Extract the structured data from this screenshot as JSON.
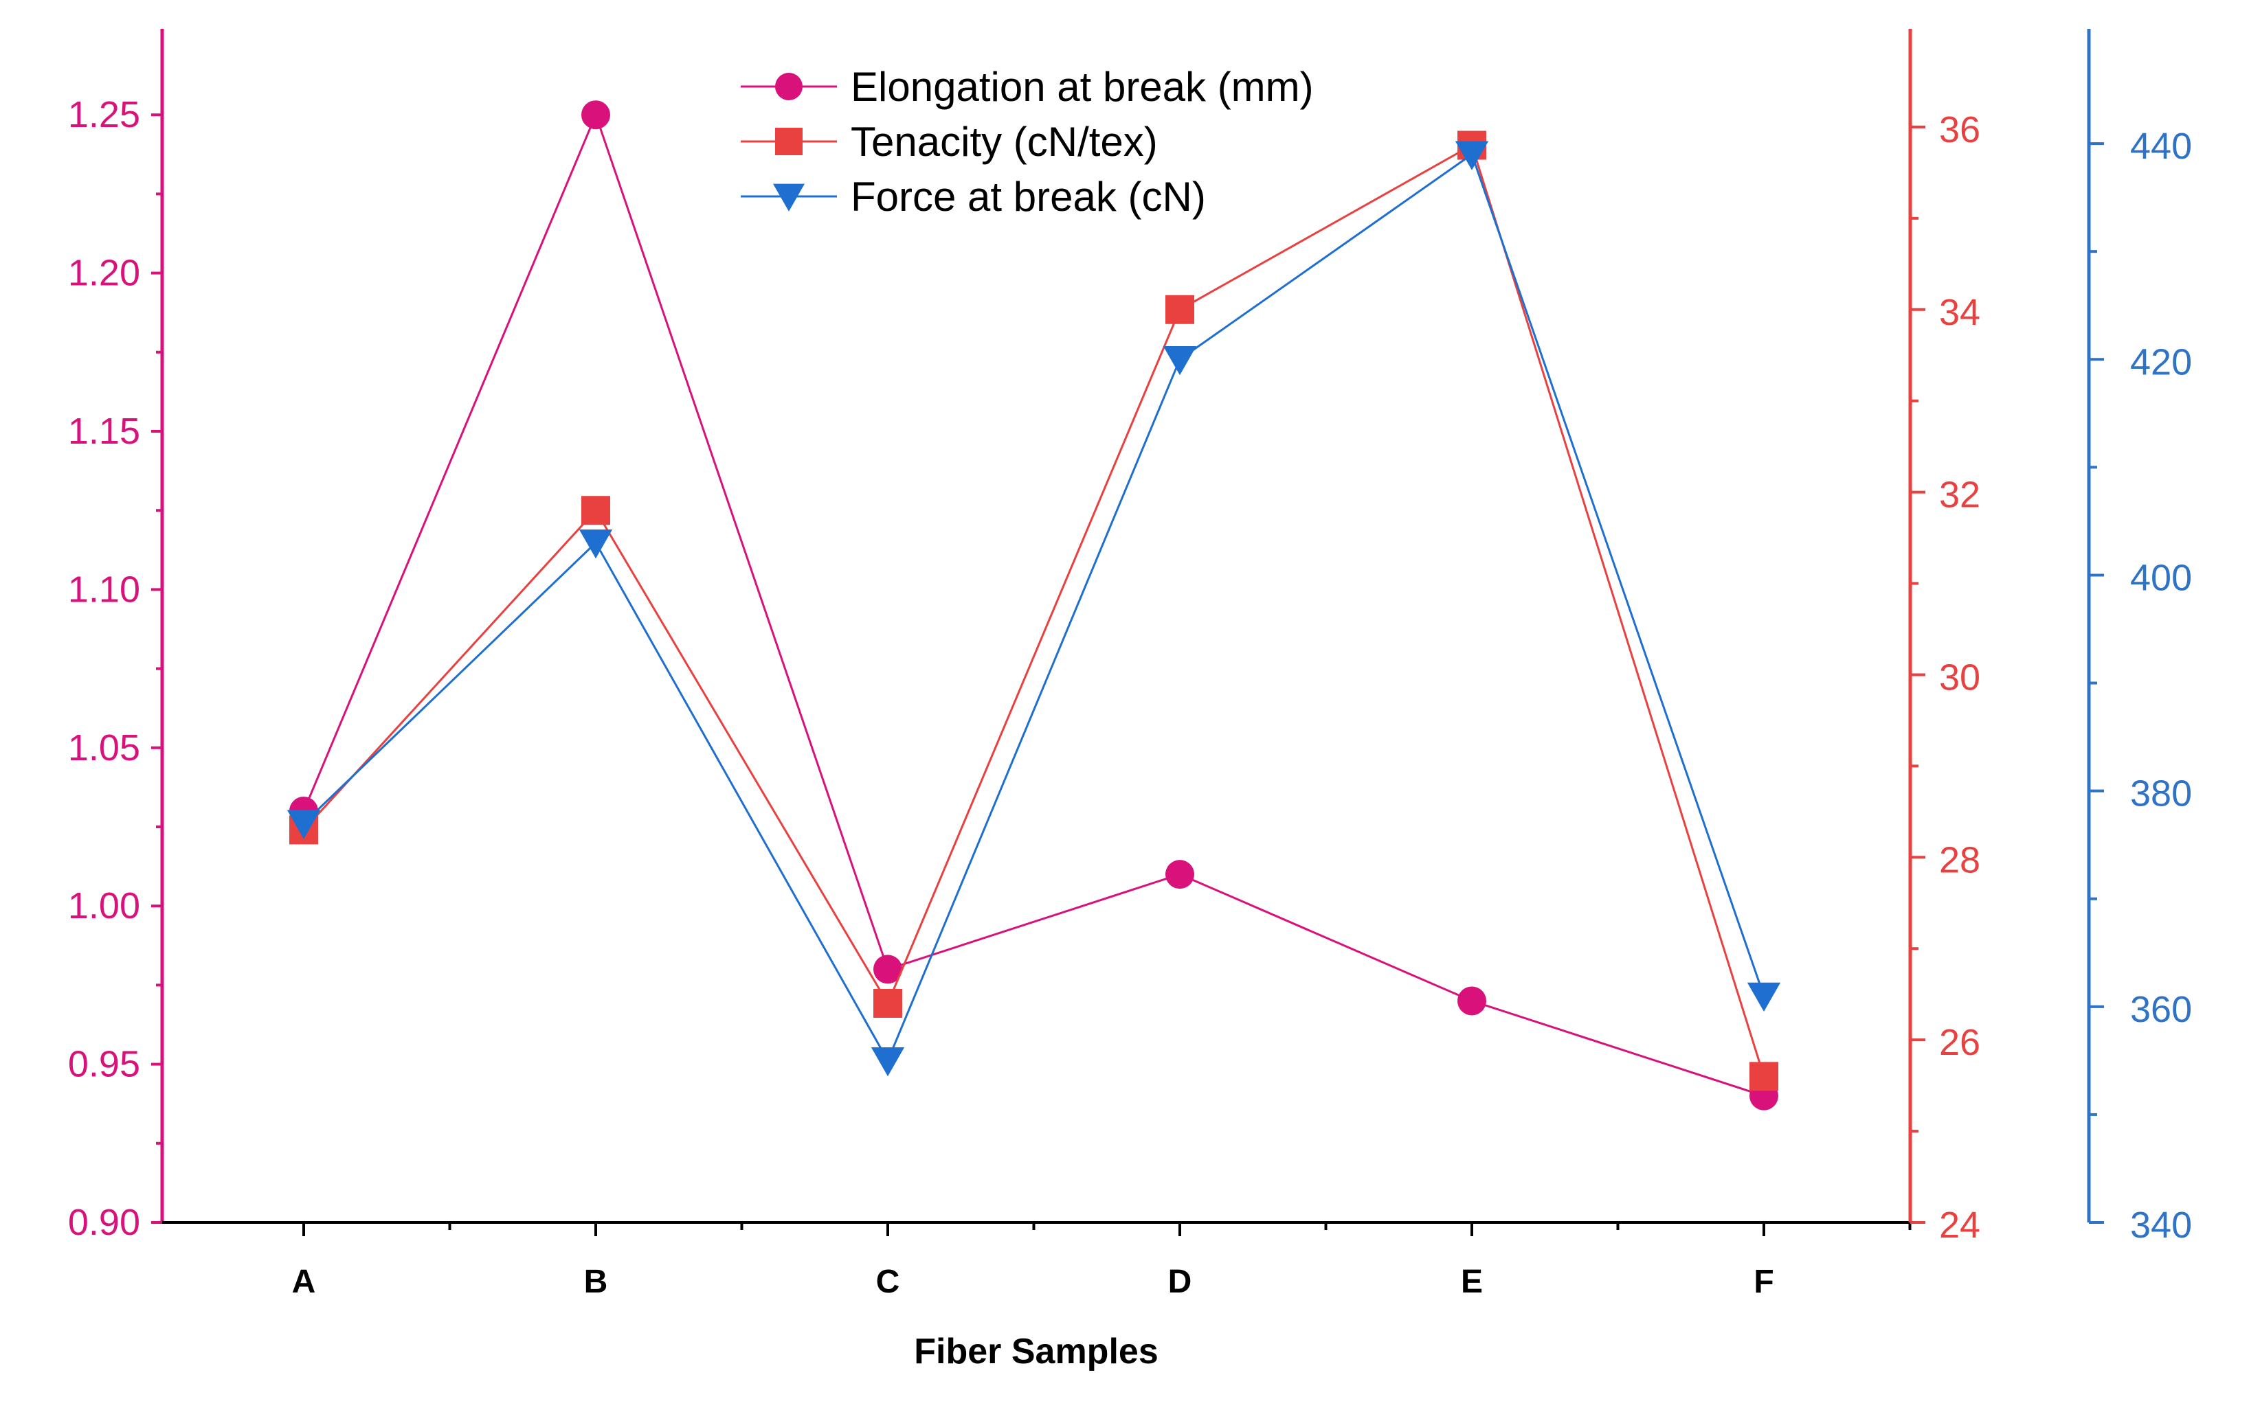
{
  "chart_data": {
    "type": "line",
    "title": "",
    "xlabel": "Fiber Samples",
    "categories": [
      "A",
      "B",
      "C",
      "D",
      "E",
      "F"
    ],
    "series": [
      {
        "name": "Elongation at break (mm)",
        "axis": "left",
        "marker": "circle",
        "color": "#d9117a",
        "values": [
          1.03,
          1.25,
          0.98,
          1.01,
          0.97,
          0.94
        ]
      },
      {
        "name": "Tenacity (cN/tex)",
        "axis": "right1",
        "marker": "square",
        "color": "#e8413f",
        "values": [
          28.3,
          31.8,
          26.4,
          34.0,
          35.8,
          25.6
        ]
      },
      {
        "name": "Force at break (cN)",
        "axis": "right2",
        "marker": "triangle-down",
        "color": "#1f6fd1",
        "values": [
          377,
          403,
          355,
          420,
          439,
          361
        ]
      }
    ],
    "axes": {
      "left": {
        "color": "#d9117a",
        "ylim": [
          0.9,
          1.275
        ],
        "ticks": [
          "0.90",
          "0.95",
          "1.00",
          "1.05",
          "1.10",
          "1.15",
          "1.20",
          "1.25"
        ]
      },
      "right1": {
        "color": "#e8413f",
        "ylim": [
          24,
          37
        ],
        "ticks": [
          "24",
          "26",
          "28",
          "30",
          "32",
          "34",
          "36"
        ]
      },
      "right2": {
        "color": "#2f73c7",
        "ylim": [
          340,
          450
        ],
        "ticks": [
          "340",
          "360",
          "380",
          "400",
          "420",
          "440"
        ]
      }
    },
    "legend_position": "top-center",
    "grid": false
  }
}
